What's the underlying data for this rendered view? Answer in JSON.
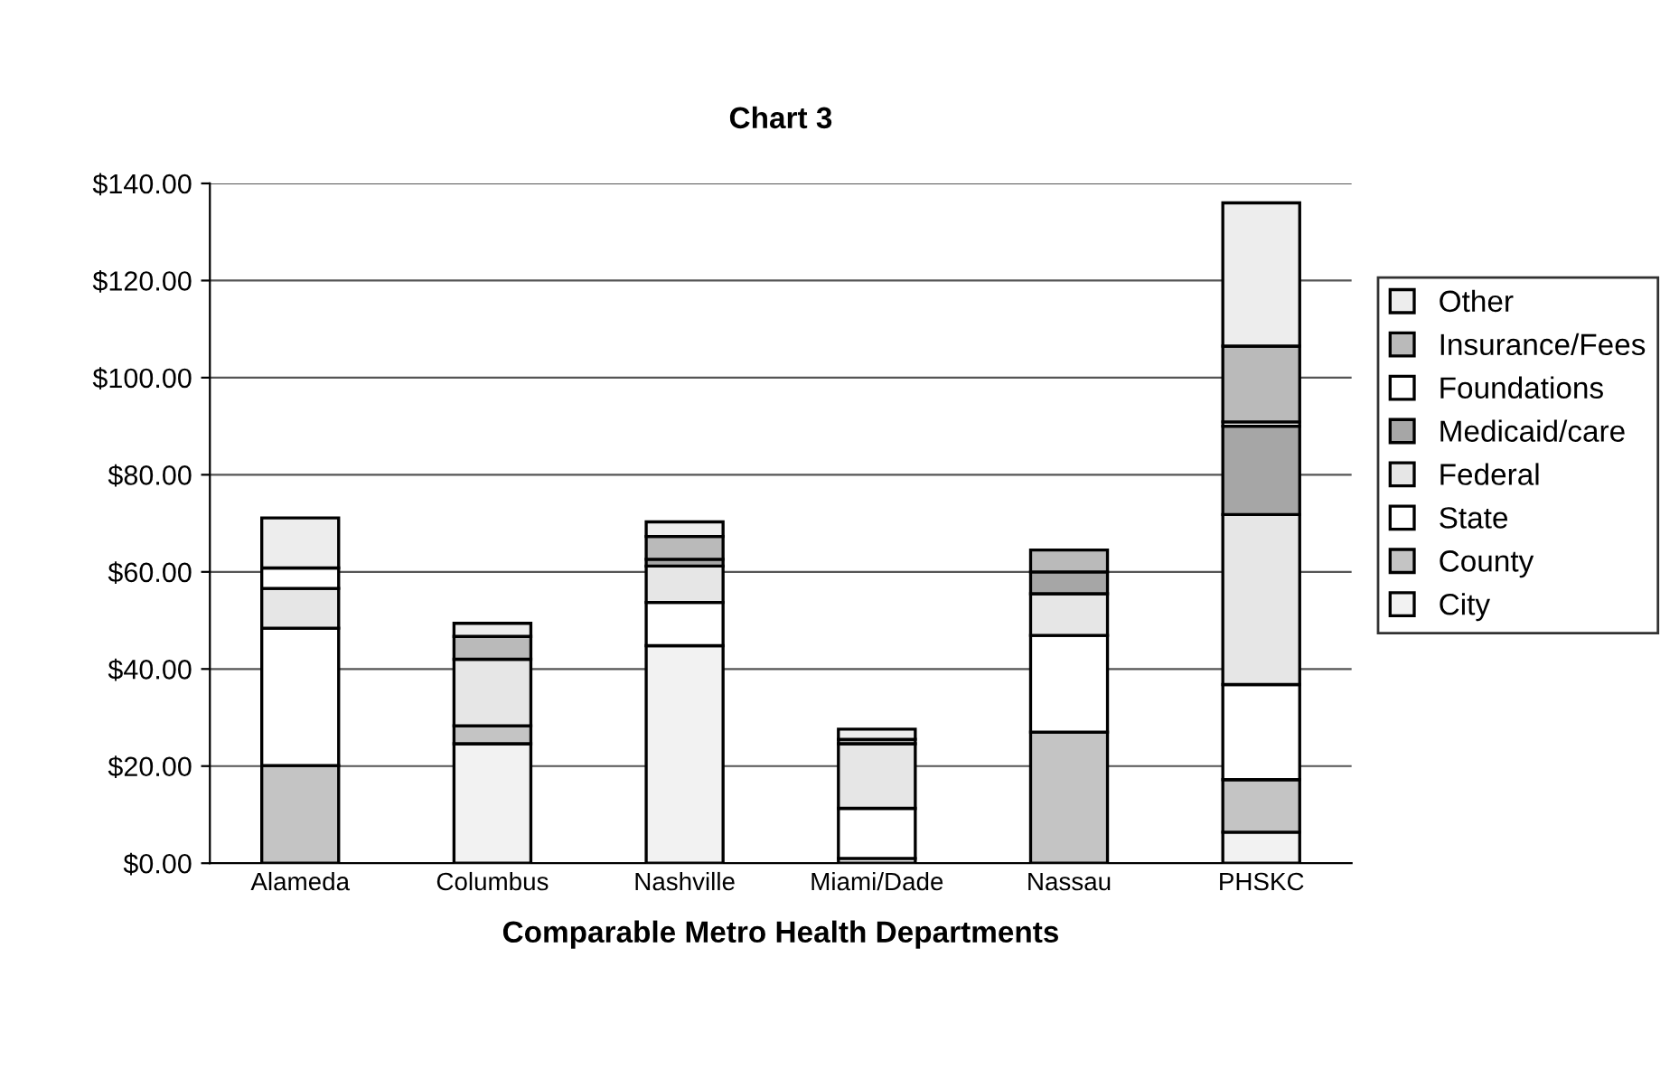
{
  "chart_data": {
    "type": "bar",
    "title": "Chart 3",
    "xlabel": "Comparable Metro Health Departments",
    "categories": [
      "Alameda",
      "Columbus",
      "Nashville",
      "Miami/Dade",
      "Nassau",
      "PHSKC"
    ],
    "stacked": true,
    "legend": "right",
    "grid": "y",
    "ylim": [
      0,
      140
    ],
    "yticks": [
      {
        "value": 0,
        "label": "$0.00"
      },
      {
        "value": 20,
        "label": "$20.00"
      },
      {
        "value": 40,
        "label": "$40.00"
      },
      {
        "value": 60,
        "label": "$60.00"
      },
      {
        "value": 80,
        "label": "$80.00"
      },
      {
        "value": 100,
        "label": "$100.00"
      },
      {
        "value": 120,
        "label": "$120.00"
      },
      {
        "value": 140,
        "label": "$140.00"
      }
    ],
    "series": [
      {
        "name": "City",
        "color": "#f2f2f2",
        "values": [
          null,
          24.6,
          44.8,
          1,
          0,
          6.4
        ]
      },
      {
        "name": "County",
        "color": "#c4c4c4",
        "values": [
          20.1,
          3.7,
          0,
          0,
          27,
          10.8
        ]
      },
      {
        "name": "State",
        "color": "#ffffff",
        "values": [
          28.3,
          0,
          8.9,
          10.3,
          19.9,
          19.6
        ]
      },
      {
        "name": "Federal",
        "color": "#e6e6e6",
        "values": [
          8.2,
          13.7,
          7.5,
          13.3,
          8.6,
          35
        ]
      },
      {
        "name": "Medicaid/care",
        "color": "#a6a6a6",
        "values": [
          null,
          0,
          1.4,
          0.9,
          4.5,
          18.2
        ]
      },
      {
        "name": "Foundations",
        "color": "#ffffff",
        "values": [
          4.2,
          0,
          0,
          0,
          0,
          0.9
        ]
      },
      {
        "name": "Insurance/Fees",
        "color": "#bababa",
        "values": [
          0,
          4.7,
          4.7,
          0,
          4.5,
          15.6
        ]
      },
      {
        "name": "Other",
        "color": "#ededed",
        "values": [
          10.3,
          2.7,
          3,
          2.1,
          0,
          29.5
        ]
      }
    ]
  }
}
